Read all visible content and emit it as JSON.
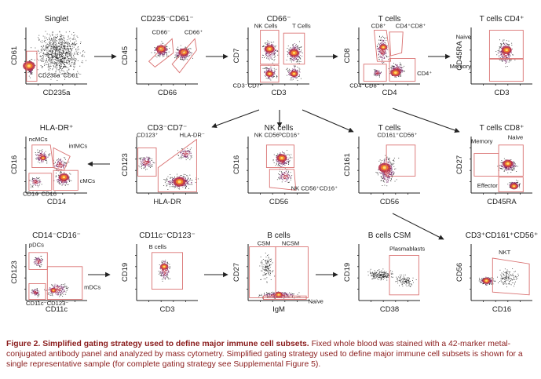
{
  "colors": {
    "gate": "#d97070",
    "arrow": "#222222",
    "caption": "#8a1c1c",
    "density": [
      "#2a0a3a",
      "#6a1b5e",
      "#b8324b",
      "#f07a2a",
      "#fde06a"
    ]
  },
  "panels": [
    {
      "id": "singlet",
      "title": "Singlet",
      "xlabel": "CD235a",
      "ylabel": "CD61",
      "gates": [
        {
          "label": "CD235a⁻CD61⁻"
        }
      ]
    },
    {
      "id": "cd235-cd61",
      "title": "CD235⁻CD61⁻",
      "xlabel": "CD66",
      "ylabel": "CD45",
      "gates": [
        {
          "label": "CD66⁻"
        },
        {
          "label": "CD66⁺"
        }
      ]
    },
    {
      "id": "cd66neg",
      "title": "CD66⁻",
      "xlabel": "CD3",
      "ylabel": "CD7",
      "gates": [
        {
          "label": "NK Cells"
        },
        {
          "label": "T Cells"
        },
        {
          "label": "CD3⁻CD7⁻"
        }
      ]
    },
    {
      "id": "tcells",
      "title": "T cells",
      "xlabel": "CD4",
      "ylabel": "CD8",
      "gates": [
        {
          "label": "CD8⁺"
        },
        {
          "label": "CD4⁺CD8⁺"
        },
        {
          "label": "CD4⁺"
        },
        {
          "label": "CD4⁻CD8⁻"
        }
      ]
    },
    {
      "id": "tcd4",
      "title": "T cells CD4⁺",
      "xlabel": "CD3",
      "ylabel": "CD45RA",
      "gates": [
        {
          "label": "Naive"
        },
        {
          "label": "Memory"
        }
      ]
    },
    {
      "id": "hladr",
      "title": "HLA-DR⁺",
      "xlabel": "CD14",
      "ylabel": "CD16",
      "gates": [
        {
          "label": "ncMCs"
        },
        {
          "label": "intMCs"
        },
        {
          "label": "cMCs"
        },
        {
          "label": "CD14⁻CD16⁻"
        }
      ]
    },
    {
      "id": "cd3cd7",
      "title": "CD3⁻CD7⁻",
      "xlabel": "HLA-DR",
      "ylabel": "CD123",
      "gates": [
        {
          "label": "CD123⁺"
        },
        {
          "label": "HLA-DR⁻"
        },
        {
          "label": "HLA-DR⁺"
        }
      ]
    },
    {
      "id": "nk",
      "title": "NK cells",
      "xlabel": "CD56",
      "ylabel": "CD16",
      "gates": [
        {
          "label": "NK CD56ᵇCD16⁺"
        },
        {
          "label": "NK CD56⁺CD16⁺"
        }
      ]
    },
    {
      "id": "tcells2",
      "title": "T cells",
      "xlabel": "CD56",
      "ylabel": "CD161",
      "gates": [
        {
          "label": "CD161⁺CD56⁺"
        }
      ]
    },
    {
      "id": "tcd8",
      "title": "T cells CD8⁺",
      "xlabel": "CD45RA",
      "ylabel": "CD27",
      "gates": [
        {
          "label": "Memory"
        },
        {
          "label": "Naive"
        },
        {
          "label": "Effector"
        }
      ]
    },
    {
      "id": "cd14cd16",
      "title": "CD14⁻CD16⁻",
      "xlabel": "CD11c",
      "ylabel": "CD123",
      "gates": [
        {
          "label": "pDCs"
        },
        {
          "label": "mDCs"
        },
        {
          "label": "CD11c⁻CD123⁻"
        }
      ]
    },
    {
      "id": "cd11c",
      "title": "CD11c⁻CD123⁻",
      "xlabel": "CD3",
      "ylabel": "CD19",
      "gates": [
        {
          "label": "B cells"
        }
      ]
    },
    {
      "id": "bcells",
      "title": "B cells",
      "xlabel": "IgM",
      "ylabel": "CD27",
      "gates": [
        {
          "label": "CSM"
        },
        {
          "label": "NCSM"
        },
        {
          "label": "Naive"
        }
      ]
    },
    {
      "id": "bcsm",
      "title": "B cells CSM",
      "xlabel": "CD38",
      "ylabel": "CD19",
      "gates": [
        {
          "label": "Plasmablasts"
        }
      ]
    },
    {
      "id": "nkt",
      "title": "CD3⁺CD161⁺CD56⁺",
      "xlabel": "CD16",
      "ylabel": "CD56",
      "gates": [
        {
          "label": "NKT"
        }
      ]
    }
  ],
  "caption": {
    "label": "Figure 2. Simplified gating strategy used to define major immune cell subsets.",
    "text": " Fixed whole blood was stained with a 42-marker metal-conjugated antibody panel and analyzed by mass cytometry. Simplified gating strategy used to define major immune cell subsets is shown for a single representative sample (for complete gating strategy see Supplemental Figure 5)."
  }
}
